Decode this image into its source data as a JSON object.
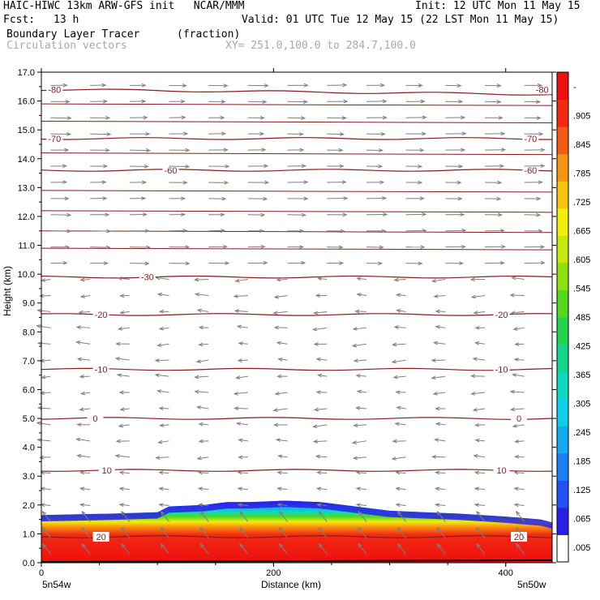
{
  "header": {
    "model": "HAIC-HIWC 13km ARW-GFS init   NCAR/MMM",
    "init": "Init: 12 UTC Mon 11 May 15",
    "fcst_label": "Fcst:",
    "fcst_value": "13 h",
    "valid": "Valid: 01 UTC Tue 12 May 15 (22 LST Mon 11 May 15)",
    "field": "Boundary Layer Tracer",
    "field_units": "(fraction)",
    "vectors": "Circulation vectors",
    "xy": "XY= 251.0,100.0 to 284.7,100.0"
  },
  "axes": {
    "ylabel": "Height (km)",
    "xlabel": "Distance (km)",
    "left_lon": "5n54w",
    "right_lon": "5n50w"
  },
  "colors": {
    "contour": "#8b1a1a",
    "vector": "#7f7f7f",
    "terrain": "#000000"
  },
  "chart_data": {
    "type": "cross-section",
    "x_range": [
      0,
      440
    ],
    "y_range": [
      0.0,
      17.0
    ],
    "y_ticks": [
      "0.0",
      "1.0",
      "2.0",
      "3.0",
      "4.0",
      "5.0",
      "6.0",
      "7.0",
      "8.0",
      "9.0",
      "10.0",
      "11.0",
      "12.0",
      "13.0",
      "14.0",
      "15.0",
      "16.0",
      "17.0"
    ],
    "x_ticks": [
      0,
      200,
      400
    ],
    "x_tick_labels": [
      "0",
      "200",
      "400"
    ],
    "temperature_contours": [
      {
        "label": "20",
        "height_km": 0.9,
        "label_x": [
          50,
          410
        ]
      },
      {
        "label": "10",
        "height_km": 3.2,
        "label_x": [
          55,
          395
        ]
      },
      {
        "label": "0",
        "height_km": 5.0,
        "label_x": [
          45,
          410
        ]
      },
      {
        "label": "-10",
        "height_km": 6.7,
        "label_x": [
          50,
          395
        ]
      },
      {
        "label": "-20",
        "height_km": 8.6,
        "label_x": [
          50,
          395
        ]
      },
      {
        "label": "-30",
        "height_km": 9.9,
        "label_x": [
          90
        ]
      },
      {
        "label": "-60",
        "height_km": 13.6,
        "label_x": [
          110,
          420
        ]
      },
      {
        "label": "-70",
        "height_km": 14.7,
        "label_x": [
          10,
          420
        ]
      },
      {
        "label": "-80",
        "height_km": 16.4,
        "label_x": [
          10,
          430
        ]
      }
    ],
    "tracer_top_km": [
      [
        0,
        1.65
      ],
      [
        60,
        1.7
      ],
      [
        100,
        1.75
      ],
      [
        110,
        1.95
      ],
      [
        140,
        2.0
      ],
      [
        160,
        2.1
      ],
      [
        180,
        2.1
      ],
      [
        210,
        2.15
      ],
      [
        240,
        2.1
      ],
      [
        260,
        2.0
      ],
      [
        300,
        1.8
      ],
      [
        330,
        1.75
      ],
      [
        360,
        1.7
      ],
      [
        400,
        1.6
      ],
      [
        430,
        1.5
      ],
      [
        440,
        1.4
      ]
    ],
    "colorbar": {
      "ticks": [
        ".005",
        ".065",
        ".125",
        ".185",
        ".245",
        ".305",
        ".365",
        ".425",
        ".485",
        ".545",
        ".605",
        ".665",
        ".725",
        ".785",
        ".845",
        ".905",
        "-"
      ],
      "colors": [
        "#ffffff",
        "#2b1fe6",
        "#2152f5",
        "#1a7ef8",
        "#12a9f5",
        "#0ccfe9",
        "#0bd9c0",
        "#13d68c",
        "#22d34e",
        "#52d81e",
        "#8ee00e",
        "#c6e80a",
        "#f2ef0a",
        "#f8c40c",
        "#f8930f",
        "#f65a11",
        "#f22a12",
        "#ee0f0f"
      ]
    }
  }
}
